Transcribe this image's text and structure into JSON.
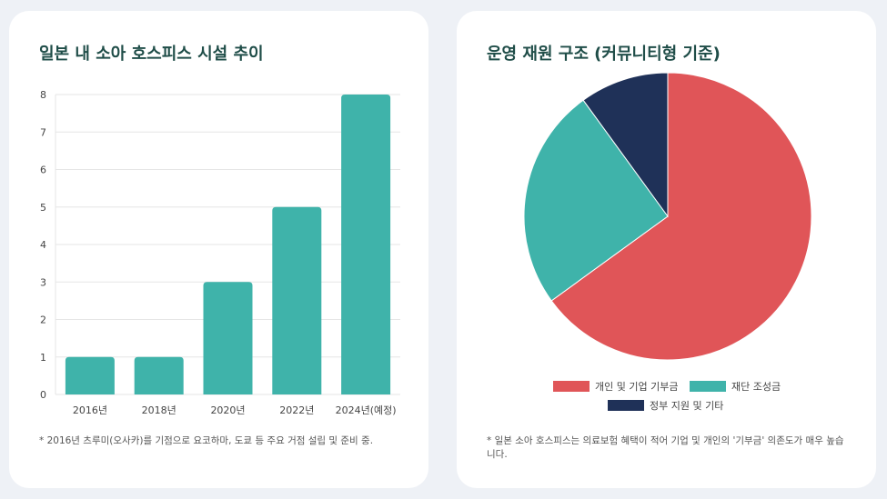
{
  "colors": {
    "bar": "#3fb3aa",
    "individual": "#e05558",
    "foundation": "#3fb3aa",
    "government": "#1f3158",
    "title": "#1f4d48"
  },
  "left_card": {
    "title": "일본 내 소아 호스피스 시설 추이",
    "footnote": "* 2016년 츠루미(오사카)를 기점으로 요코하마, 도쿄 등 주요 거점 설립 및 준비 중."
  },
  "right_card": {
    "title": "운영 재원 구조 (커뮤니티형 기준)",
    "footnote": "* 일본 소아 호스피스는 의료보험 혜택이 적어 기업 및 개인의 '기부금' 의존도가 매우 높습니다."
  },
  "chart_data": [
    {
      "type": "bar",
      "categories": [
        "2016년",
        "2018년",
        "2020년",
        "2022년",
        "2024년(예정)"
      ],
      "values": [
        1,
        1,
        3,
        5,
        8
      ],
      "ylim": [
        0,
        8
      ],
      "yticks": [
        "0",
        "1",
        "2",
        "3",
        "4",
        "5",
        "6",
        "7",
        "8"
      ],
      "grid": true
    },
    {
      "type": "pie",
      "labels": [
        "개인 및 기업 기부금",
        "재단 조성금",
        "정부 지원 및 기타"
      ],
      "values": [
        65,
        25,
        10
      ],
      "legend": "bottom"
    }
  ]
}
